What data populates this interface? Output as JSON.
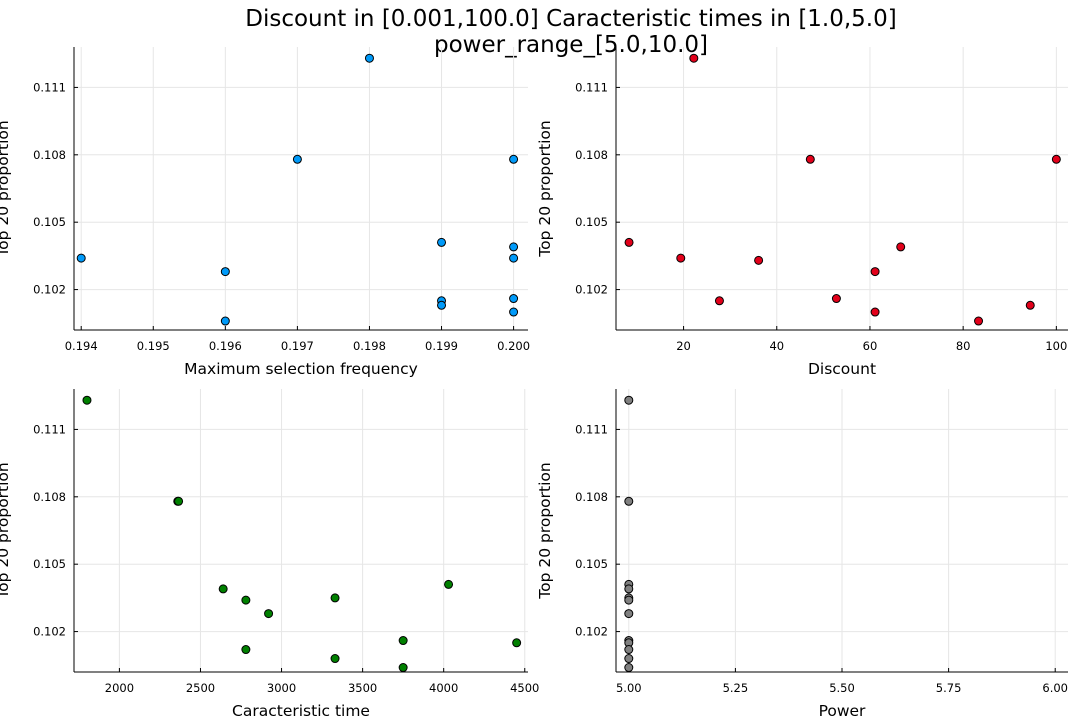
{
  "figure": {
    "title_line1": "Discount in [0.001,100.0] Caracteristic times in [1.0,5.0]",
    "title_line2": "power_range_[5.0,10.0]"
  },
  "chart_data": [
    {
      "type": "scatter",
      "xlabel": "Maximum selection frequency",
      "ylabel": "Top 20 proportion",
      "color": "#009af9",
      "xlim": [
        0.1939,
        0.2002
      ],
      "ylim": [
        0.1002,
        0.1128
      ],
      "xticks": [
        0.194,
        0.195,
        0.196,
        0.197,
        0.198,
        0.199,
        0.2
      ],
      "xtick_labels": [
        "0.194",
        "0.195",
        "0.196",
        "0.197",
        "0.198",
        "0.199",
        "0.200"
      ],
      "yticks": [
        0.102,
        0.105,
        0.108,
        0.111
      ],
      "ytick_labels": [
        "0.102",
        "0.105",
        "0.108",
        "0.111"
      ],
      "grid": true,
      "points": [
        {
          "x": 0.194,
          "y": 0.1034
        },
        {
          "x": 0.196,
          "y": 0.1028
        },
        {
          "x": 0.196,
          "y": 0.1006
        },
        {
          "x": 0.197,
          "y": 0.1078
        },
        {
          "x": 0.198,
          "y": 0.1123
        },
        {
          "x": 0.199,
          "y": 0.1041
        },
        {
          "x": 0.199,
          "y": 0.1015
        },
        {
          "x": 0.199,
          "y": 0.1013
        },
        {
          "x": 0.2,
          "y": 0.1078
        },
        {
          "x": 0.2,
          "y": 0.1039
        },
        {
          "x": 0.2,
          "y": 0.1034
        },
        {
          "x": 0.2,
          "y": 0.1016
        },
        {
          "x": 0.2,
          "y": 0.101
        }
      ]
    },
    {
      "type": "scatter",
      "xlabel": "Discount",
      "ylabel": "Top 20 proportion",
      "color": "#e2001a",
      "xlim": [
        5.5,
        102.5
      ],
      "ylim": [
        0.1002,
        0.1128
      ],
      "xticks": [
        20,
        40,
        60,
        80,
        100
      ],
      "xtick_labels": [
        "20",
        "40",
        "60",
        "80",
        "100"
      ],
      "yticks": [
        0.102,
        0.105,
        0.108,
        0.111
      ],
      "ytick_labels": [
        "0.102",
        "0.105",
        "0.108",
        "0.111"
      ],
      "grid": true,
      "points": [
        {
          "x": 8.3,
          "y": 0.1041
        },
        {
          "x": 19.4,
          "y": 0.1034
        },
        {
          "x": 22.2,
          "y": 0.1123
        },
        {
          "x": 27.7,
          "y": 0.1015
        },
        {
          "x": 36.1,
          "y": 0.1033
        },
        {
          "x": 47.2,
          "y": 0.1078
        },
        {
          "x": 52.8,
          "y": 0.1016
        },
        {
          "x": 61.1,
          "y": 0.1028
        },
        {
          "x": 61.1,
          "y": 0.101
        },
        {
          "x": 66.6,
          "y": 0.1039
        },
        {
          "x": 83.3,
          "y": 0.1006
        },
        {
          "x": 94.4,
          "y": 0.1013
        },
        {
          "x": 100.0,
          "y": 0.1078
        }
      ]
    },
    {
      "type": "scatter",
      "xlabel": "Caracteristic time",
      "ylabel": "Top 20 proportion",
      "color": "#008000",
      "xlim": [
        1720,
        4520
      ],
      "ylim": [
        0.1002,
        0.1128
      ],
      "xticks": [
        2000,
        2500,
        3000,
        3500,
        4000,
        4500
      ],
      "xtick_labels": [
        "2000",
        "2500",
        "3000",
        "3500",
        "4000",
        "4500"
      ],
      "yticks": [
        0.102,
        0.105,
        0.108,
        0.111
      ],
      "ytick_labels": [
        "0.102",
        "0.105",
        "0.108",
        "0.111"
      ],
      "grid": true,
      "points": [
        {
          "x": 1800,
          "y": 0.1123
        },
        {
          "x": 2360,
          "y": 0.1078
        },
        {
          "x": 2365,
          "y": 0.1078
        },
        {
          "x": 2640,
          "y": 0.1039
        },
        {
          "x": 2780,
          "y": 0.1034
        },
        {
          "x": 2780,
          "y": 0.1012
        },
        {
          "x": 2920,
          "y": 0.1028
        },
        {
          "x": 3330,
          "y": 0.1035
        },
        {
          "x": 3330,
          "y": 0.1008
        },
        {
          "x": 3750,
          "y": 0.1016
        },
        {
          "x": 3750,
          "y": 0.1004
        },
        {
          "x": 4030,
          "y": 0.1041
        },
        {
          "x": 4450,
          "y": 0.1015
        }
      ]
    },
    {
      "type": "scatter",
      "xlabel": "Power",
      "ylabel": "Top 20 proportion",
      "color": "#808080",
      "xlim": [
        4.97,
        6.03
      ],
      "ylim": [
        0.1002,
        0.1128
      ],
      "xticks": [
        5.0,
        5.25,
        5.5,
        5.75,
        6.0
      ],
      "xtick_labels": [
        "5.00",
        "5.25",
        "5.50",
        "5.75",
        "6.00"
      ],
      "yticks": [
        0.102,
        0.105,
        0.108,
        0.111
      ],
      "ytick_labels": [
        "0.102",
        "0.105",
        "0.108",
        "0.111"
      ],
      "grid": true,
      "points": [
        {
          "x": 5.0,
          "y": 0.1123
        },
        {
          "x": 5.0,
          "y": 0.1078
        },
        {
          "x": 5.0,
          "y": 0.1041
        },
        {
          "x": 5.0,
          "y": 0.1039
        },
        {
          "x": 5.0,
          "y": 0.1035
        },
        {
          "x": 5.0,
          "y": 0.1034
        },
        {
          "x": 5.0,
          "y": 0.1028
        },
        {
          "x": 5.0,
          "y": 0.1016
        },
        {
          "x": 5.0,
          "y": 0.1015
        },
        {
          "x": 5.0,
          "y": 0.1012
        },
        {
          "x": 5.0,
          "y": 0.1008
        },
        {
          "x": 5.0,
          "y": 0.1004
        }
      ]
    }
  ]
}
